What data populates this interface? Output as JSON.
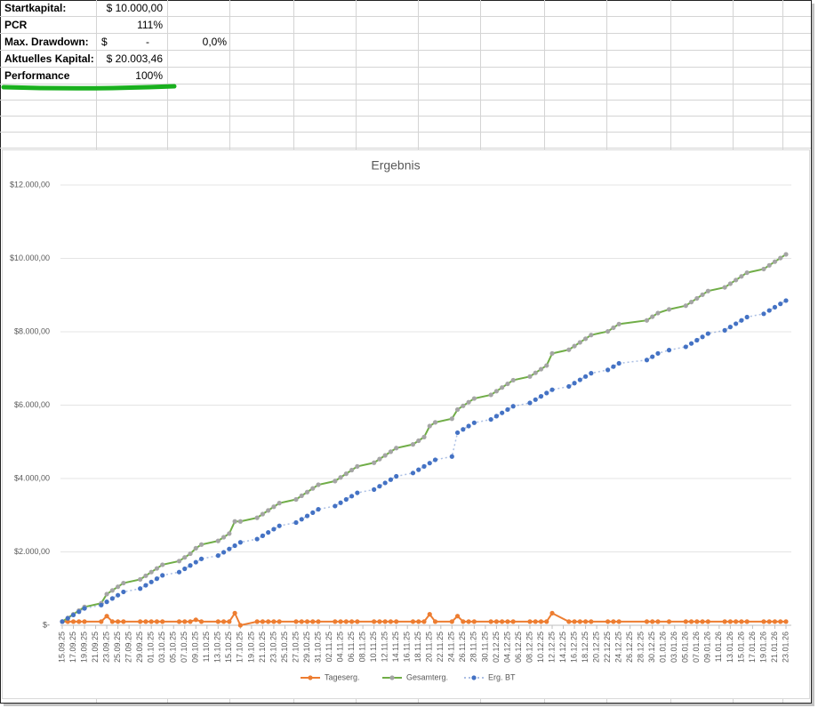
{
  "sheet": {
    "rows": [
      {
        "label": "Startkapital:",
        "value": "$ 10.000,00"
      },
      {
        "label": "PCR",
        "value": "111%"
      },
      {
        "label": "Max. Drawdown:",
        "currency": "$",
        "value": "-",
        "ratio": "0,0%"
      },
      {
        "label": "Aktuelles Kapital:",
        "value": "$ 20.003,46"
      },
      {
        "label": "Performance",
        "value": "100%"
      }
    ]
  },
  "chart_data": {
    "type": "line",
    "title": "Ergebnis",
    "x": [
      "15.09.25",
      "16.09.25",
      "17.09.25",
      "18.09.25",
      "19.09.25",
      "22.09.25",
      "23.09.25",
      "24.09.25",
      "25.09.25",
      "26.09.25",
      "29.09.25",
      "30.09.25",
      "01.10.25",
      "02.10.25",
      "03.10.25",
      "06.10.25",
      "07.10.25",
      "08.10.25",
      "09.10.25",
      "10.10.25",
      "13.10.25",
      "14.10.25",
      "15.10.25",
      "16.10.25",
      "17.10.25",
      "20.10.25",
      "21.10.25",
      "22.10.25",
      "23.10.25",
      "24.10.25",
      "27.10.25",
      "28.10.25",
      "29.10.25",
      "30.10.25",
      "31.10.25",
      "03.11.25",
      "04.11.25",
      "05.11.25",
      "06.11.25",
      "07.11.25",
      "10.11.25",
      "11.11.25",
      "12.11.25",
      "13.11.25",
      "14.11.25",
      "17.11.25",
      "18.11.25",
      "19.11.25",
      "20.11.25",
      "21.11.25",
      "24.11.25",
      "25.11.25",
      "26.11.25",
      "27.11.25",
      "28.11.25",
      "01.12.25",
      "02.12.25",
      "03.12.25",
      "04.12.25",
      "05.12.25",
      "08.12.25",
      "09.12.25",
      "10.12.25",
      "11.12.25",
      "12.12.25",
      "15.12.25",
      "16.12.25",
      "17.12.25",
      "18.12.25",
      "19.12.25",
      "22.12.25",
      "23.12.25",
      "24.12.25",
      "29.12.25",
      "30.12.25",
      "31.12.25",
      "02.01.26",
      "05.01.26",
      "06.01.26",
      "07.01.26",
      "08.01.26",
      "09.01.26",
      "12.01.26",
      "13.01.26",
      "14.01.26",
      "15.01.26",
      "16.01.26",
      "19.01.26",
      "20.01.26",
      "21.01.26",
      "22.01.26",
      "23.01.26"
    ],
    "xlim": [
      "15.09.25",
      "23.01.26"
    ],
    "xticks": [
      "15.09.25",
      "17.09.25",
      "19.09.25",
      "21.09.25",
      "23.09.25",
      "25.09.25",
      "27.09.25",
      "29.09.25",
      "01.10.25",
      "03.10.25",
      "05.10.25",
      "07.10.25",
      "09.10.25",
      "11.10.25",
      "13.10.25",
      "15.10.25",
      "17.10.25",
      "19.10.25",
      "21.10.25",
      "23.10.25",
      "25.10.25",
      "27.10.25",
      "29.10.25",
      "31.10.25",
      "02.11.25",
      "04.11.25",
      "06.11.25",
      "08.11.25",
      "10.11.25",
      "12.11.25",
      "14.11.25",
      "16.11.25",
      "18.11.25",
      "20.11.25",
      "22.11.25",
      "24.11.25",
      "26.11.25",
      "28.11.25",
      "30.11.25",
      "02.12.25",
      "04.12.25",
      "06.12.25",
      "08.12.25",
      "10.12.25",
      "12.12.25",
      "14.12.25",
      "16.12.25",
      "18.12.25",
      "20.12.25",
      "22.12.25",
      "24.12.25",
      "26.12.25",
      "28.12.25",
      "30.12.25",
      "01.01.26",
      "03.01.26",
      "05.01.26",
      "07.01.26",
      "09.01.26",
      "11.01.26",
      "13.01.26",
      "15.01.26",
      "17.01.26",
      "19.01.26",
      "21.01.26",
      "23.01.26"
    ],
    "ylim": [
      0,
      12000
    ],
    "yticks": [
      {
        "value": 0,
        "label": "$-"
      },
      {
        "value": 2000,
        "label": "$2.000,00"
      },
      {
        "value": 4000,
        "label": "$4.000,00"
      },
      {
        "value": 6000,
        "label": "$6.000,00"
      },
      {
        "value": 8000,
        "label": "$8.000,00"
      },
      {
        "value": 10000,
        "label": "$10.000,00"
      },
      {
        "value": 12000,
        "label": "$12.000,00"
      }
    ],
    "grid": true,
    "series": [
      {
        "name": "Tageserg.",
        "color": "#ed7d31",
        "marker_color": "#ed7d31",
        "line_style": "solid",
        "values": [
          100,
          100,
          100,
          100,
          100,
          100,
          250,
          100,
          100,
          100,
          100,
          100,
          100,
          100,
          100,
          100,
          100,
          100,
          150,
          100,
          100,
          100,
          100,
          330,
          0,
          100,
          100,
          100,
          100,
          100,
          100,
          100,
          100,
          100,
          100,
          100,
          100,
          100,
          100,
          100,
          100,
          100,
          100,
          100,
          100,
          100,
          100,
          100,
          300,
          100,
          100,
          250,
          100,
          100,
          100,
          100,
          100,
          100,
          100,
          100,
          100,
          100,
          100,
          100,
          330,
          100,
          100,
          100,
          100,
          100,
          100,
          100,
          100,
          100,
          100,
          100,
          100,
          100,
          100,
          100,
          100,
          100,
          100,
          100,
          100,
          100,
          100,
          100,
          100,
          100,
          100,
          100
        ]
      },
      {
        "name": "Gesamterg.",
        "color": "#70ad47",
        "marker_color": "#a5a5a5",
        "line_style": "solid",
        "values": [
          100,
          200,
          300,
          400,
          500,
          600,
          850,
          950,
          1050,
          1150,
          1250,
          1350,
          1450,
          1550,
          1650,
          1750,
          1850,
          1950,
          2100,
          2200,
          2300,
          2400,
          2500,
          2830,
          2830,
          2930,
          3030,
          3130,
          3230,
          3330,
          3430,
          3530,
          3630,
          3730,
          3830,
          3930,
          4030,
          4130,
          4230,
          4330,
          4430,
          4530,
          4630,
          4730,
          4830,
          4930,
          5030,
          5130,
          5430,
          5530,
          5630,
          5880,
          5980,
          6080,
          6180,
          6280,
          6380,
          6480,
          6580,
          6680,
          6780,
          6880,
          6980,
          7080,
          7410,
          7510,
          7610,
          7710,
          7810,
          7910,
          8010,
          8110,
          8210,
          8310,
          8410,
          8510,
          8610,
          8710,
          8810,
          8910,
          9010,
          9110,
          9210,
          9310,
          9410,
          9510,
          9610,
          9710,
          9810,
          9910,
          10010,
          10110
        ]
      },
      {
        "name": "Erg. BT",
        "color": "#4472c4",
        "marker_color": "#4472c4",
        "line_style": "dotted",
        "values": [
          100,
          190,
          280,
          370,
          460,
          550,
          640,
          730,
          820,
          910,
          1000,
          1090,
          1180,
          1270,
          1360,
          1450,
          1540,
          1630,
          1720,
          1810,
          1900,
          1990,
          2080,
          2170,
          2260,
          2350,
          2440,
          2530,
          2620,
          2710,
          2800,
          2890,
          2980,
          3070,
          3160,
          3250,
          3340,
          3430,
          3520,
          3610,
          3700,
          3790,
          3880,
          3970,
          4060,
          4150,
          4240,
          4330,
          4420,
          4510,
          4600,
          5250,
          5340,
          5430,
          5520,
          5610,
          5700,
          5790,
          5880,
          5970,
          6060,
          6150,
          6240,
          6330,
          6420,
          6510,
          6600,
          6690,
          6780,
          6870,
          6960,
          7050,
          7140,
          7230,
          7320,
          7410,
          7500,
          7590,
          7680,
          7770,
          7860,
          7950,
          8040,
          8130,
          8220,
          8310,
          8400,
          8490,
          8580,
          8670,
          8760,
          8850
        ]
      }
    ]
  }
}
